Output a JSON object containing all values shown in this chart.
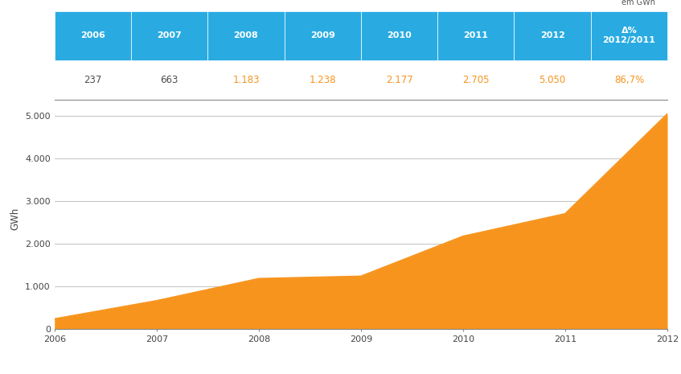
{
  "years": [
    2006,
    2007,
    2008,
    2009,
    2010,
    2011,
    2012
  ],
  "values": [
    237,
    663,
    1183,
    1238,
    2177,
    2705,
    5050
  ],
  "table_headers": [
    "2006",
    "2007",
    "2008",
    "2009",
    "2010",
    "2011",
    "2012",
    "Δ%\n2012/2011"
  ],
  "table_values": [
    "237",
    "663",
    "1.183",
    "1.238",
    "2.177",
    "2.705",
    "5.050",
    "86,7%"
  ],
  "header_bg_color": "#29ABE2",
  "header_text_color": "#FFFFFF",
  "area_color": "#F7941D",
  "line_color": "#F7941D",
  "axis_label": "GWh",
  "em_gwh_label": "em GWh",
  "yticks": [
    0,
    1000,
    2000,
    3000,
    4000,
    5000
  ],
  "ytick_labels": [
    "0",
    "1.000",
    "2.000",
    "3.000",
    "4.000",
    "5.000"
  ],
  "grid_color": "#AAAAAA",
  "value_text_color_orange": "#F7941D",
  "value_text_color_dark": "#4D4D4D",
  "background_color": "#FFFFFF",
  "ylim": [
    0,
    5200
  ]
}
